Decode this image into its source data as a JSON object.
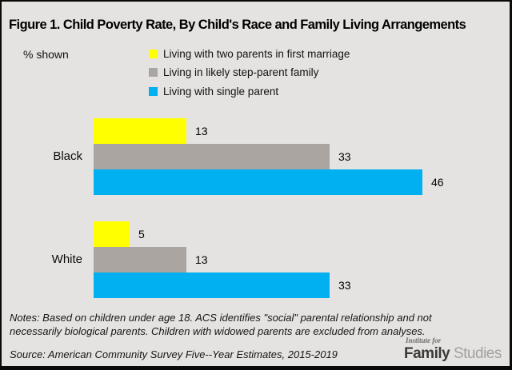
{
  "window": {
    "background": "#e5e3e1",
    "border_color": "#0a0a0a"
  },
  "chart_data": {
    "type": "bar",
    "orientation": "horizontal",
    "title": "Figure 1. Child Poverty Rate, By Child's Race and Family Living Arrangements",
    "value_note": "% shown",
    "categories": [
      "Black",
      "White"
    ],
    "series": [
      {
        "name": "Living with two parents in first marriage",
        "color": "#FFFF00",
        "values": [
          13,
          5
        ]
      },
      {
        "name": "Living in likely step-parent family",
        "color": "#ABA5A2",
        "values": [
          33,
          13
        ]
      },
      {
        "name": "Living with single parent",
        "color": "#00B0F0",
        "values": [
          46,
          33
        ]
      }
    ],
    "xlim": [
      0,
      50
    ],
    "grid": false,
    "legend_position": "top-center",
    "data_labels": true,
    "xlabel": "",
    "ylabel": ""
  },
  "notes": {
    "line1": "Notes: Based on children under age 18. ACS identifies \"social\" parental relationship and not",
    "line2": "necessarily biological parents. Children with widowed parents are excluded from analyses."
  },
  "source": "Source: American Community Survey Five--Year Estimates, 2015-2019",
  "logo": {
    "tagline": "Institute for",
    "name_bold": "Family",
    "name_light": "Studies"
  }
}
